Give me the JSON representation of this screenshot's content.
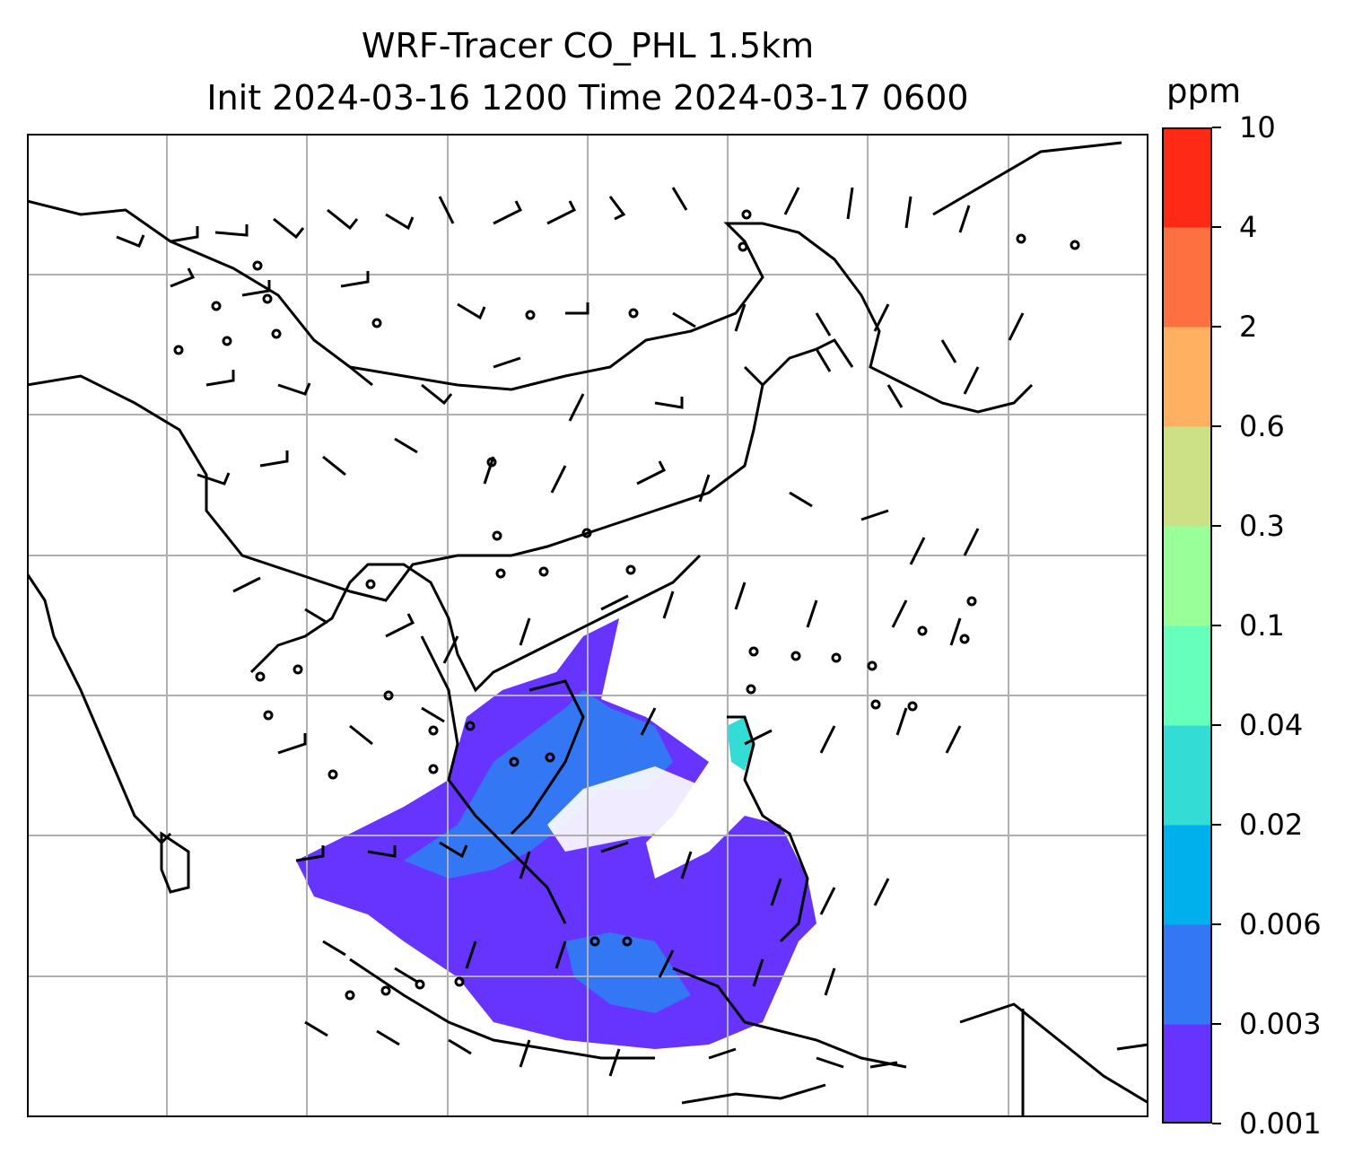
{
  "title": {
    "line1": "WRF-Tracer CO_PHL 1.5km",
    "line2": "Init 2024-03-16 1200 Time 2024-03-17 0600"
  },
  "colorbar": {
    "unit": "ppm",
    "levels": [
      "0.001",
      "0.003",
      "0.006",
      "0.02",
      "0.04",
      "0.1",
      "0.3",
      "0.6",
      "2",
      "4",
      "10"
    ],
    "colors": [
      "#6633ff",
      "#3377f5",
      "#00b0ec",
      "#33ddd6",
      "#66ffbb",
      "#99ff99",
      "#cce085",
      "#ffb060",
      "#ff7040",
      "#ff2a16"
    ]
  },
  "map": {
    "region": "East and Southeast Asia, western Pacific",
    "gridlines": true,
    "coastline_color": "#000000",
    "wind_barbs": true,
    "tracer_field": "CO_PHL"
  }
}
